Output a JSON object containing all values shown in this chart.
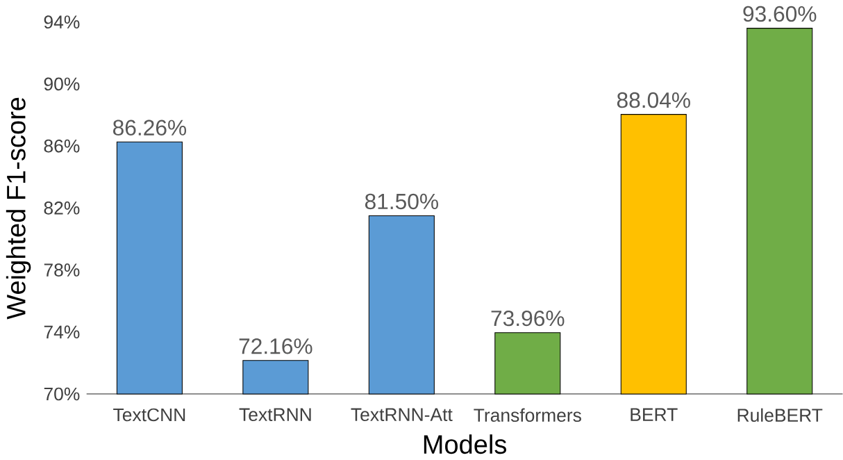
{
  "chart_data": {
    "type": "bar",
    "xlabel": "Models",
    "ylabel": "Weighted F1-score",
    "categories": [
      "TextCNN",
      "TextRNN",
      "TextRNN-Att",
      "Transformers",
      "BERT",
      "RuleBERT"
    ],
    "values": [
      86.26,
      72.16,
      81.5,
      73.96,
      88.04,
      93.6
    ],
    "colors": [
      "#5b9bd5",
      "#5b9bd5",
      "#5b9bd5",
      "#70ad47",
      "#ffc000",
      "#70ad47"
    ],
    "value_labels": [
      "86.26%",
      "72.16%",
      "81.50%",
      "73.96%",
      "88.04%",
      "93.60%"
    ],
    "ylim": [
      70,
      94
    ],
    "yticks": [
      {
        "value": 70,
        "label": "70%"
      },
      {
        "value": 74,
        "label": "74%"
      },
      {
        "value": 78,
        "label": "78%"
      },
      {
        "value": 82,
        "label": "82%"
      },
      {
        "value": 86,
        "label": "86%"
      },
      {
        "value": 90,
        "label": "90%"
      },
      {
        "value": 94,
        "label": "94%"
      }
    ],
    "grid": false
  }
}
